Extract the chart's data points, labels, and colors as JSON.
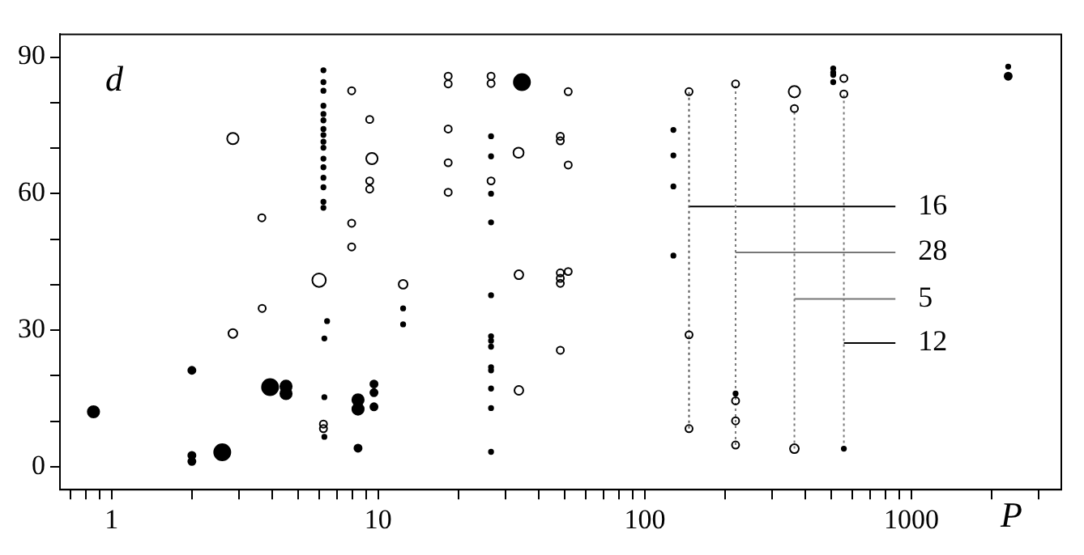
{
  "chart_data": {
    "type": "bubble",
    "xlabel": "P",
    "ylabel": "d",
    "log": "x",
    "grid": false,
    "legend": false,
    "marker": "circle",
    "xlim": [
      0.64,
      3650
    ],
    "ylim": [
      -5,
      95
    ],
    "xticks": [
      {
        "value": 0.7,
        "label": null
      },
      {
        "value": 0.8,
        "label": null
      },
      {
        "value": 0.9,
        "label": null
      },
      1,
      {
        "value": 2,
        "label": null
      },
      {
        "value": 3,
        "label": null
      },
      {
        "value": 4,
        "label": null
      },
      {
        "value": 5,
        "label": null
      },
      {
        "value": 6,
        "label": null
      },
      {
        "value": 7,
        "label": null
      },
      {
        "value": 8,
        "label": null
      },
      {
        "value": 9,
        "label": null
      },
      10,
      {
        "value": 20,
        "label": null
      },
      {
        "value": 30,
        "label": null
      },
      {
        "value": 40,
        "label": null
      },
      {
        "value": 50,
        "label": null
      },
      {
        "value": 60,
        "label": null
      },
      {
        "value": 70,
        "label": null
      },
      {
        "value": 80,
        "label": null
      },
      {
        "value": 90,
        "label": null
      },
      100,
      {
        "value": 200,
        "label": null
      },
      {
        "value": 300,
        "label": null
      },
      {
        "value": 400,
        "label": null
      },
      {
        "value": 500,
        "label": null
      },
      {
        "value": 600,
        "label": null
      },
      {
        "value": 700,
        "label": null
      },
      {
        "value": 800,
        "label": null
      },
      {
        "value": 900,
        "label": null
      },
      1000,
      {
        "value": 2000,
        "label": null
      },
      {
        "value": 3000,
        "label": null
      }
    ],
    "yticks": [
      0,
      {
        "value": 10,
        "label": null
      },
      {
        "value": 20,
        "label": null
      },
      30,
      {
        "value": 40,
        "label": null
      },
      {
        "value": 50,
        "label": null
      },
      60,
      {
        "value": 70,
        "label": null
      },
      {
        "value": 80,
        "label": null
      },
      90
    ],
    "annotations": [
      "16",
      "28",
      "5",
      "12"
    ],
    "series": [
      {
        "color": "#000000",
        "x": [
          2.6,
          3.93,
          34.6,
          0.855,
          4.51,
          4.51,
          8.4,
          8.4,
          2.0,
          2.0,
          2.0,
          8.4,
          9.64,
          9.64,
          9.64,
          2307,
          6.23,
          6.23,
          6.23,
          6.23,
          6.23,
          6.23,
          6.23,
          6.23,
          6.23,
          6.23,
          6.23,
          6.23,
          6.23,
          6.23,
          6.23,
          6.23,
          6.28,
          6.28,
          6.28,
          26.5,
          26.5,
          26.5,
          26.5,
          26.5,
          26.5,
          26.5,
          26.5,
          26.5,
          26.5,
          26.5,
          26.5,
          26.5,
          12.4,
          12.4,
          128,
          128,
          128,
          128,
          509,
          509,
          509,
          509,
          2307,
          558,
          219,
          6.43
        ],
        "values": [
          3.2,
          17.5,
          84.5,
          12.1,
          17.7,
          16.1,
          14.7,
          12.7,
          21.2,
          2.5,
          1.2,
          4.1,
          18.2,
          16.3,
          13.2,
          85.8,
          87.1,
          84.5,
          82.6,
          79.3,
          77.5,
          76.1,
          74.2,
          72.9,
          71.4,
          70.1,
          67.7,
          65.8,
          63.5,
          61.4,
          58.2,
          56.9,
          28.2,
          15.3,
          6.6,
          72.6,
          68.2,
          60.0,
          53.7,
          37.7,
          28.7,
          27.7,
          26.4,
          21.9,
          21.2,
          17.2,
          12.9,
          3.3,
          34.8,
          31.3,
          74.0,
          68.4,
          61.6,
          46.4,
          87.5,
          86.6,
          86.1,
          84.5,
          87.9,
          4.0,
          16.1,
          32.0
        ],
        "sizes": [
          1,
          1,
          1,
          0.5,
          0.5,
          0.5,
          0.5,
          0.5,
          0.2,
          0.2,
          0.2,
          0.2,
          0.2,
          0.2,
          0.2,
          0.2,
          0.07,
          0.07,
          0.07,
          0.07,
          0.07,
          0.07,
          0.07,
          0.07,
          0.07,
          0.07,
          0.07,
          0.07,
          0.07,
          0.07,
          0.07,
          0.07,
          0.07,
          0.07,
          0.07,
          0.07,
          0.07,
          0.07,
          0.07,
          0.07,
          0.07,
          0.07,
          0.07,
          0.07,
          0.07,
          0.07,
          0.07,
          0.07,
          0.07,
          0.07,
          0.07,
          0.07,
          0.07,
          0.07,
          0.07,
          0.07,
          0.07,
          0.07,
          0.07,
          0.07,
          0.07,
          0.07
        ]
      },
      {
        "color": "#000000",
        "x": [
          2.85,
          2.85,
          6.0,
          9.47,
          33.6,
          364,
          12.4,
          33.7,
          33.7,
          364,
          3.66,
          3.67,
          6.23,
          6.23,
          7.95,
          7.95,
          7.95,
          9.29,
          9.29,
          9.29,
          18.3,
          18.3,
          18.3,
          18.3,
          18.3,
          26.5,
          26.5,
          26.5,
          48.2,
          48.2,
          51.6,
          51.6,
          48.2,
          48.2,
          48.2,
          51.6,
          48.2,
          146.5,
          146.5,
          146.5,
          219,
          219,
          219,
          219,
          364,
          558,
          558
        ],
        "values": [
          72.1,
          29.3,
          41.0,
          67.7,
          69.0,
          82.4,
          40.1,
          42.2,
          16.8,
          4.0,
          54.7,
          34.8,
          9.4,
          8.4,
          82.6,
          53.5,
          48.3,
          76.3,
          62.8,
          61.0,
          85.8,
          84.1,
          74.2,
          66.8,
          60.3,
          85.8,
          84.2,
          62.8,
          72.6,
          71.6,
          82.4,
          66.3,
          42.6,
          41.4,
          40.3,
          42.9,
          25.6,
          82.4,
          29.0,
          8.4,
          84.1,
          14.5,
          10.1,
          4.8,
          78.7,
          85.3,
          81.9
        ],
        "sizes": [
          0.5,
          0.3,
          0.7,
          0.5,
          0.4,
          0.5,
          0.3,
          0.3,
          0.3,
          0.3,
          0.2,
          0.2,
          0.2,
          0.2,
          0.2,
          0.2,
          0.2,
          0.2,
          0.2,
          0.2,
          0.2,
          0.2,
          0.2,
          0.2,
          0.2,
          0.2,
          0.2,
          0.2,
          0.2,
          0.2,
          0.2,
          0.2,
          0.2,
          0.2,
          0.2,
          0.2,
          0.2,
          0.2,
          0.2,
          0.2,
          0.2,
          0.2,
          0.2,
          0.2,
          0.2,
          0.2,
          0.2
        ]
      },
      {
        "type": "line",
        "color": "#555555",
        "line_style": "dotted",
        "marker": "none",
        "x": [
          146.5,
          146.5
        ],
        "values": [
          8.4,
          82.4
        ]
      },
      {
        "type": "line",
        "color": "#777777",
        "line_style": "dotted",
        "marker": "none",
        "x": [
          219,
          219
        ],
        "values": [
          4.8,
          84.1
        ]
      },
      {
        "type": "line",
        "color": "#777777",
        "line_style": "dotted",
        "marker": "none",
        "x": [
          364,
          364
        ],
        "values": [
          4.0,
          78.7
        ]
      },
      {
        "type": "line",
        "color": "#777777",
        "line_style": "dotted",
        "marker": "none",
        "x": [
          558,
          558
        ],
        "values": [
          4.0,
          81.9
        ]
      },
      {
        "type": "line",
        "color": "#000000",
        "line_style": "solid",
        "marker": "none",
        "x": [
          146.5,
          871
        ],
        "values": [
          57.2,
          57.2
        ]
      },
      {
        "type": "line",
        "color": "#777777",
        "line_style": "solid",
        "marker": "none",
        "x": [
          219,
          871
        ],
        "values": [
          47.1,
          47.1
        ]
      },
      {
        "type": "line",
        "color": "#777777",
        "line_style": "solid",
        "marker": "none",
        "x": [
          364,
          871
        ],
        "values": [
          36.9,
          36.9
        ]
      },
      {
        "type": "line",
        "color": "#000000",
        "line_style": "solid",
        "marker": "none",
        "x": [
          558,
          871
        ],
        "values": [
          27.2,
          27.2
        ]
      }
    ]
  }
}
